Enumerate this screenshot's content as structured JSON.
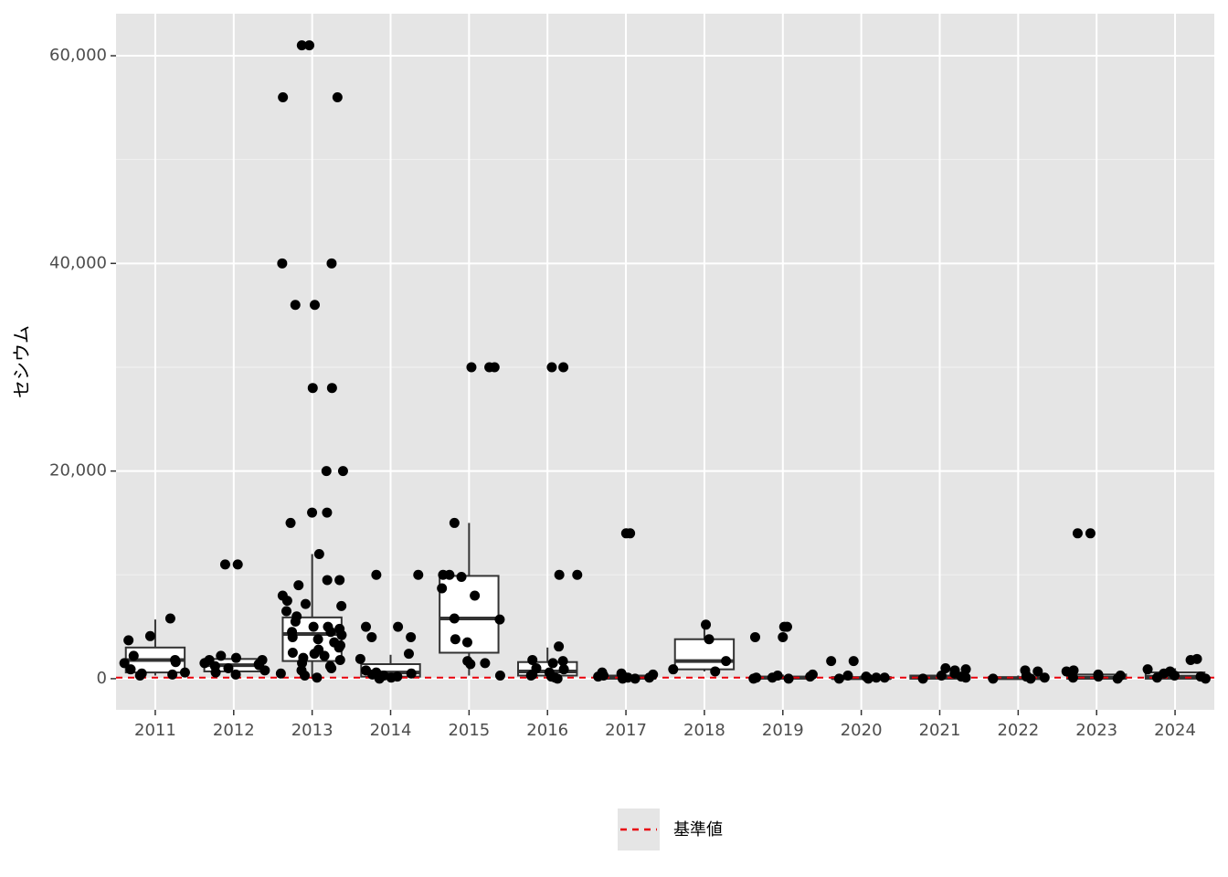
{
  "chart_data": {
    "type": "boxplot",
    "ylabel": "セシウム",
    "categories": [
      "2011",
      "2012",
      "2013",
      "2014",
      "2015",
      "2016",
      "2017",
      "2018",
      "2019",
      "2020",
      "2021",
      "2022",
      "2023",
      "2024"
    ],
    "boxes": [
      {
        "min": 300,
        "q1": 600,
        "median": 1800,
        "q3": 3000,
        "max": 5700
      },
      {
        "min": 300,
        "q1": 700,
        "median": 1300,
        "q3": 1900,
        "max": 2300
      },
      {
        "min": 0,
        "q1": 1700,
        "median": 4300,
        "q3": 5900,
        "max": 12000
      },
      {
        "min": 0,
        "q1": 200,
        "median": 600,
        "q3": 1400,
        "max": 2300
      },
      {
        "min": 300,
        "q1": 2500,
        "median": 5800,
        "q3": 9900,
        "max": 15000
      },
      {
        "min": 0,
        "q1": 300,
        "median": 700,
        "q3": 1600,
        "max": 3000
      },
      {
        "min": 0,
        "q1": 0,
        "median": 100,
        "q3": 300,
        "max": 600
      },
      {
        "min": 700,
        "q1": 900,
        "median": 1700,
        "q3": 3800,
        "max": 5200
      },
      {
        "min": 0,
        "q1": 0,
        "median": 100,
        "q3": 200,
        "max": 400
      },
      {
        "min": 0,
        "q1": 0,
        "median": 50,
        "q3": 150,
        "max": 300
      },
      {
        "min": 0,
        "q1": 0,
        "median": 100,
        "q3": 300,
        "max": 700
      },
      {
        "min": 0,
        "q1": 0,
        "median": 50,
        "q3": 150,
        "max": 300
      },
      {
        "min": 0,
        "q1": 0,
        "median": 100,
        "q3": 400,
        "max": 800
      },
      {
        "min": 0,
        "q1": 0,
        "median": 200,
        "q3": 600,
        "max": 1000
      }
    ],
    "points": [
      [
        5800,
        3700,
        4100,
        1600,
        2200,
        1800,
        900,
        600,
        500,
        400,
        1500,
        300
      ],
      [
        11000,
        11000,
        2200,
        2000,
        1800,
        1500,
        1300,
        1200,
        1000,
        800,
        600,
        400,
        1800,
        1400
      ],
      [
        61000,
        61000,
        56000,
        56000,
        40000,
        40000,
        36000,
        36000,
        28000,
        28000,
        20000,
        20000,
        16000,
        16000,
        15000,
        12000,
        9500,
        9000,
        9500,
        8000,
        7500,
        7200,
        7000,
        6500,
        6000,
        5500,
        5000,
        5000,
        4800,
        4500,
        4500,
        4200,
        4000,
        3800,
        3500,
        3200,
        3000,
        2800,
        2500,
        2400,
        2200,
        2000,
        1800,
        1500,
        1200,
        1000,
        800,
        500,
        300,
        100
      ],
      [
        10000,
        10000,
        5000,
        5000,
        4000,
        4000,
        2400,
        1900,
        800,
        600,
        500,
        400,
        300,
        200,
        100,
        0
      ],
      [
        30000,
        30000,
        30000,
        15000,
        10000,
        10000,
        9800,
        8700,
        8000,
        5800,
        5700,
        3800,
        3500,
        1700,
        1500,
        1400,
        300
      ],
      [
        30000,
        30000,
        10000,
        10000,
        3100,
        1800,
        1700,
        1500,
        1000,
        900,
        600,
        400,
        300,
        200,
        100,
        0
      ],
      [
        14000,
        14000,
        600,
        500,
        400,
        300,
        200,
        100,
        100,
        0,
        0
      ],
      [
        5200,
        3800,
        1700,
        900,
        700
      ],
      [
        5000,
        5000,
        4000,
        4000,
        400,
        300,
        200,
        100,
        100,
        0,
        0
      ],
      [
        1700,
        1700,
        300,
        200,
        100,
        100,
        0,
        0
      ],
      [
        1000,
        900,
        800,
        500,
        300,
        200,
        100,
        0
      ],
      [
        800,
        700,
        300,
        200,
        100,
        0,
        0
      ],
      [
        14000,
        14000,
        800,
        700,
        400,
        300,
        200,
        100,
        0
      ],
      [
        1900,
        1800,
        900,
        700,
        500,
        300,
        200,
        100,
        0
      ]
    ],
    "reference": {
      "name": "基準値",
      "value": 100,
      "color": "#e8000b"
    },
    "point_color": "#000000",
    "ylim": [
      -3000,
      64050
    ],
    "yticks": [
      0,
      {
        "value": 20000,
        "label": "20,000"
      },
      {
        "value": 40000,
        "label": "40,000"
      },
      {
        "value": 60000,
        "label": "60,000"
      }
    ],
    "grid": true
  }
}
